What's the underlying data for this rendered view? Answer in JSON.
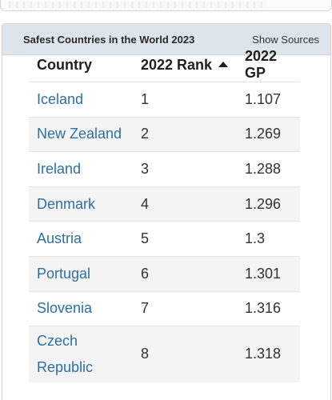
{
  "card": {
    "title": "Safest Countries in the World 2023",
    "show_sources_label": "Show Sources"
  },
  "table": {
    "headers": {
      "country": "Country",
      "rank": "2022 Rank",
      "gp": "2022 GP"
    },
    "sort": {
      "column": "2022 Rank",
      "direction": "ascending"
    },
    "rows": [
      {
        "country": "Iceland",
        "rank": "1",
        "gp": "1.107"
      },
      {
        "country": "New Zealand",
        "rank": "2",
        "gp": "1.269"
      },
      {
        "country": "Ireland",
        "rank": "3",
        "gp": "1.288"
      },
      {
        "country": "Denmark",
        "rank": "4",
        "gp": "1.296"
      },
      {
        "country": "Austria",
        "rank": "5",
        "gp": "1.3"
      },
      {
        "country": "Portugal",
        "rank": "6",
        "gp": "1.301"
      },
      {
        "country": "Slovenia",
        "rank": "7",
        "gp": "1.316"
      },
      {
        "country": "Czech Republic",
        "rank": "8",
        "gp": "1.318"
      }
    ]
  },
  "colors": {
    "header_bg": "#dde4ec",
    "link": "#2d6fa3",
    "row_alt": "#f4f4f4"
  }
}
